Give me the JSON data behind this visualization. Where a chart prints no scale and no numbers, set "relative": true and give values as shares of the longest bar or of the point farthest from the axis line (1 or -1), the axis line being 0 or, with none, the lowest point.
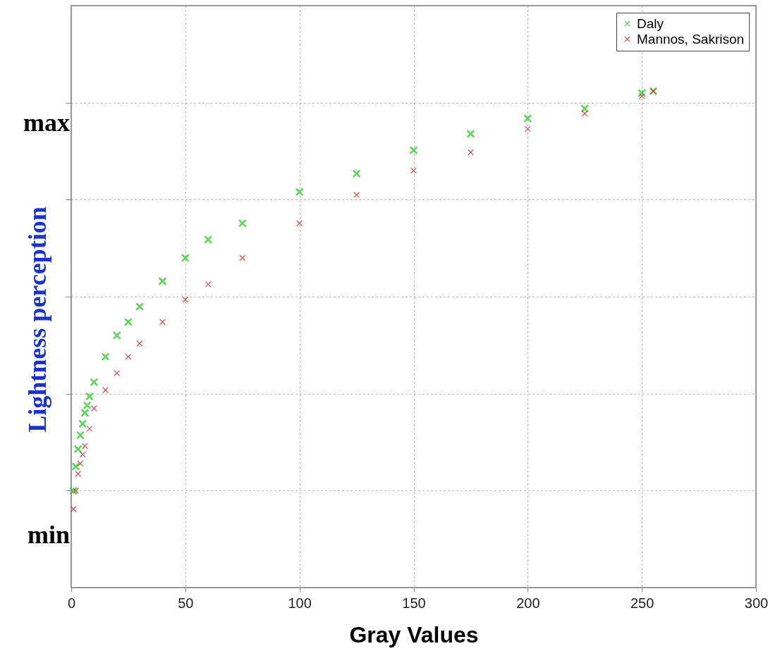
{
  "chart_data": {
    "type": "scatter",
    "xlabel": "Gray Values",
    "ylabel": "Lightness perception",
    "relative": true,
    "annotations": [
      "max",
      "min"
    ],
    "xlim": [
      0,
      300
    ],
    "xticks": [
      0,
      50,
      100,
      150,
      200,
      250,
      300
    ],
    "grid": true,
    "legend": "top right",
    "marker": "cross",
    "series": [
      {
        "name": "Daly",
        "color": "#33cc33",
        "x": [
          1,
          2,
          3,
          4,
          5,
          6,
          7,
          8,
          10,
          15,
          20,
          25,
          30,
          40,
          50,
          60,
          75,
          100,
          125,
          150,
          175,
          200,
          225,
          250,
          255
        ],
        "values": [
          0.195,
          0.244,
          0.279,
          0.307,
          0.33,
          0.352,
          0.367,
          0.385,
          0.414,
          0.465,
          0.508,
          0.535,
          0.566,
          0.617,
          0.664,
          0.701,
          0.734,
          0.797,
          0.834,
          0.881,
          0.914,
          0.945,
          0.965,
          0.996,
          1
        ]
      },
      {
        "name": "Mannos, Sakrison",
        "color": "#cc3333",
        "x": [
          1,
          2,
          3,
          4,
          5,
          6,
          8,
          10,
          15,
          20,
          25,
          30,
          40,
          50,
          60,
          75,
          100,
          125,
          150,
          175,
          200,
          225,
          250,
          255
        ],
        "values": [
          0.158,
          0.195,
          0.229,
          0.25,
          0.268,
          0.285,
          0.32,
          0.361,
          0.398,
          0.432,
          0.465,
          0.492,
          0.535,
          0.58,
          0.611,
          0.664,
          0.734,
          0.791,
          0.84,
          0.877,
          0.924,
          0.955,
          0.99,
          1
        ]
      }
    ]
  }
}
